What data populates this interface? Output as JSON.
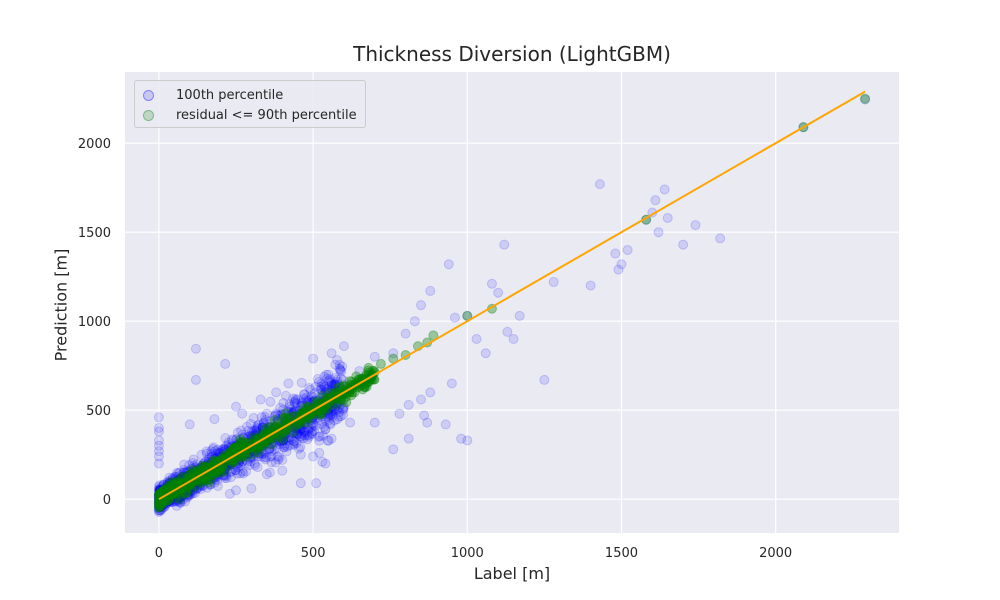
{
  "chart_data": {
    "type": "scatter",
    "title": "Thickness Diversion (LightGBM)",
    "xlabel": "Label [m]",
    "ylabel": "Prediction [m]",
    "xlim": [
      -110,
      2400
    ],
    "ylim": [
      -190,
      2400
    ],
    "x_ticks": [
      0,
      500,
      1000,
      1500,
      2000
    ],
    "y_ticks": [
      0,
      500,
      1000,
      1500,
      2000
    ],
    "grid": true,
    "legend_position": "top-left",
    "background": "#eaeaf2",
    "series": [
      {
        "name": "100th percentile",
        "color": "#0000ff",
        "alpha": 0.12,
        "points": [
          [
            0,
            460
          ],
          [
            0,
            400
          ],
          [
            0,
            380
          ],
          [
            0,
            330
          ],
          [
            0,
            300
          ],
          [
            0,
            270
          ],
          [
            0,
            240
          ],
          [
            0,
            200
          ],
          [
            0,
            -60
          ],
          [
            0,
            -40
          ],
          [
            120,
            845
          ],
          [
            120,
            670
          ],
          [
            215,
            760
          ],
          [
            180,
            450
          ],
          [
            100,
            420
          ],
          [
            250,
            520
          ],
          [
            270,
            480
          ],
          [
            330,
            560
          ],
          [
            380,
            600
          ],
          [
            420,
            650
          ],
          [
            500,
            790
          ],
          [
            560,
            820
          ],
          [
            600,
            860
          ],
          [
            550,
            700
          ],
          [
            650,
            720
          ],
          [
            700,
            800
          ],
          [
            760,
            820
          ],
          [
            800,
            930
          ],
          [
            830,
            1000
          ],
          [
            850,
            1090
          ],
          [
            880,
            1170
          ],
          [
            940,
            1320
          ],
          [
            960,
            1020
          ],
          [
            1000,
            1030
          ],
          [
            1030,
            900
          ],
          [
            1060,
            820
          ],
          [
            1080,
            1210
          ],
          [
            1100,
            1160
          ],
          [
            1120,
            1430
          ],
          [
            1130,
            940
          ],
          [
            1150,
            900
          ],
          [
            1170,
            1030
          ],
          [
            1250,
            670
          ],
          [
            1280,
            1220
          ],
          [
            1400,
            1200
          ],
          [
            1430,
            1770
          ],
          [
            1480,
            1380
          ],
          [
            1500,
            1320
          ],
          [
            1520,
            1400
          ],
          [
            1490,
            1290
          ],
          [
            1580,
            1570
          ],
          [
            1600,
            1610
          ],
          [
            1610,
            1680
          ],
          [
            1640,
            1740
          ],
          [
            1620,
            1500
          ],
          [
            1650,
            1580
          ],
          [
            1700,
            1430
          ],
          [
            1740,
            1540
          ],
          [
            1820,
            1465
          ],
          [
            2090,
            2090
          ],
          [
            2290,
            2245
          ],
          [
            1000,
            330
          ],
          [
            980,
            340
          ],
          [
            930,
            420
          ],
          [
            870,
            430
          ],
          [
            860,
            470
          ],
          [
            850,
            560
          ],
          [
            950,
            650
          ],
          [
            880,
            600
          ],
          [
            810,
            530
          ],
          [
            780,
            480
          ],
          [
            760,
            280
          ],
          [
            810,
            340
          ],
          [
            700,
            430
          ],
          [
            620,
            430
          ],
          [
            560,
            340
          ],
          [
            550,
            330
          ],
          [
            520,
            260
          ],
          [
            500,
            240
          ],
          [
            530,
            210
          ],
          [
            540,
            200
          ],
          [
            460,
            250
          ],
          [
            400,
            220
          ],
          [
            360,
            150
          ],
          [
            320,
            180
          ],
          [
            300,
            60
          ],
          [
            250,
            50
          ],
          [
            230,
            30
          ],
          [
            510,
            90
          ],
          [
            460,
            90
          ],
          [
            400,
            160
          ],
          [
            350,
            140
          ]
        ]
      },
      {
        "name": "residual <= 90th percentile",
        "color": "#008000",
        "alpha": 0.15,
        "points": [
          [
            600,
            640
          ],
          [
            640,
            690
          ],
          [
            680,
            710
          ],
          [
            720,
            760
          ],
          [
            760,
            790
          ],
          [
            800,
            810
          ],
          [
            840,
            860
          ],
          [
            870,
            880
          ],
          [
            890,
            920
          ],
          [
            1000,
            1030
          ],
          [
            1080,
            1070
          ],
          [
            1580,
            1570
          ],
          [
            2090,
            2090
          ],
          [
            2290,
            2250
          ]
        ]
      }
    ],
    "dense_band": {
      "description_free": true,
      "x_max": 600,
      "slope": 1.0,
      "spread_blue": 120,
      "spread_green": 35,
      "count_blue": 1500,
      "count_green": 600
    },
    "fit_line": {
      "color": "#ffa500",
      "x": [
        0,
        2290
      ],
      "y": [
        0,
        2290
      ]
    }
  }
}
